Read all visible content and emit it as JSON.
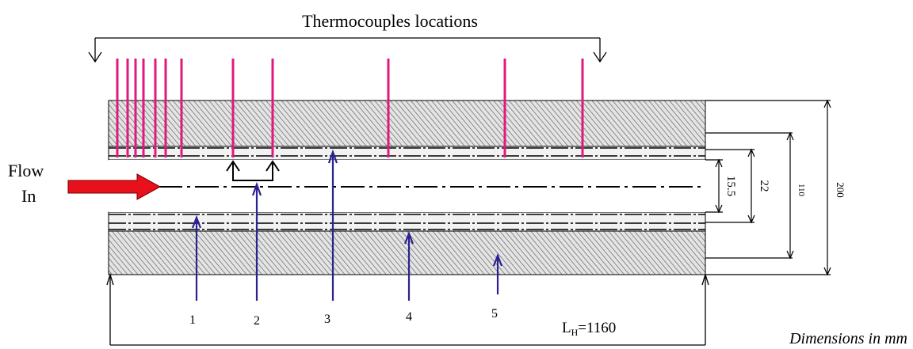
{
  "title": "Thermocouples locations",
  "flow_label": [
    "Flow",
    "In"
  ],
  "dimensions": {
    "d_inner": "15.5",
    "d_tube": "22",
    "d_insulation": "110",
    "d_outer": "200",
    "heated_length": {
      "prefix": "L",
      "subscript": "H",
      "value": "=1160"
    }
  },
  "units_note": "Dimensions in mm",
  "callouts": [
    "1",
    "2",
    "3",
    "4",
    "5"
  ],
  "colors": {
    "thermocouple": "#e0197d",
    "arrow_flow": "#e8101a",
    "callout_arrow": "#2b2290",
    "line": "#000000"
  }
}
